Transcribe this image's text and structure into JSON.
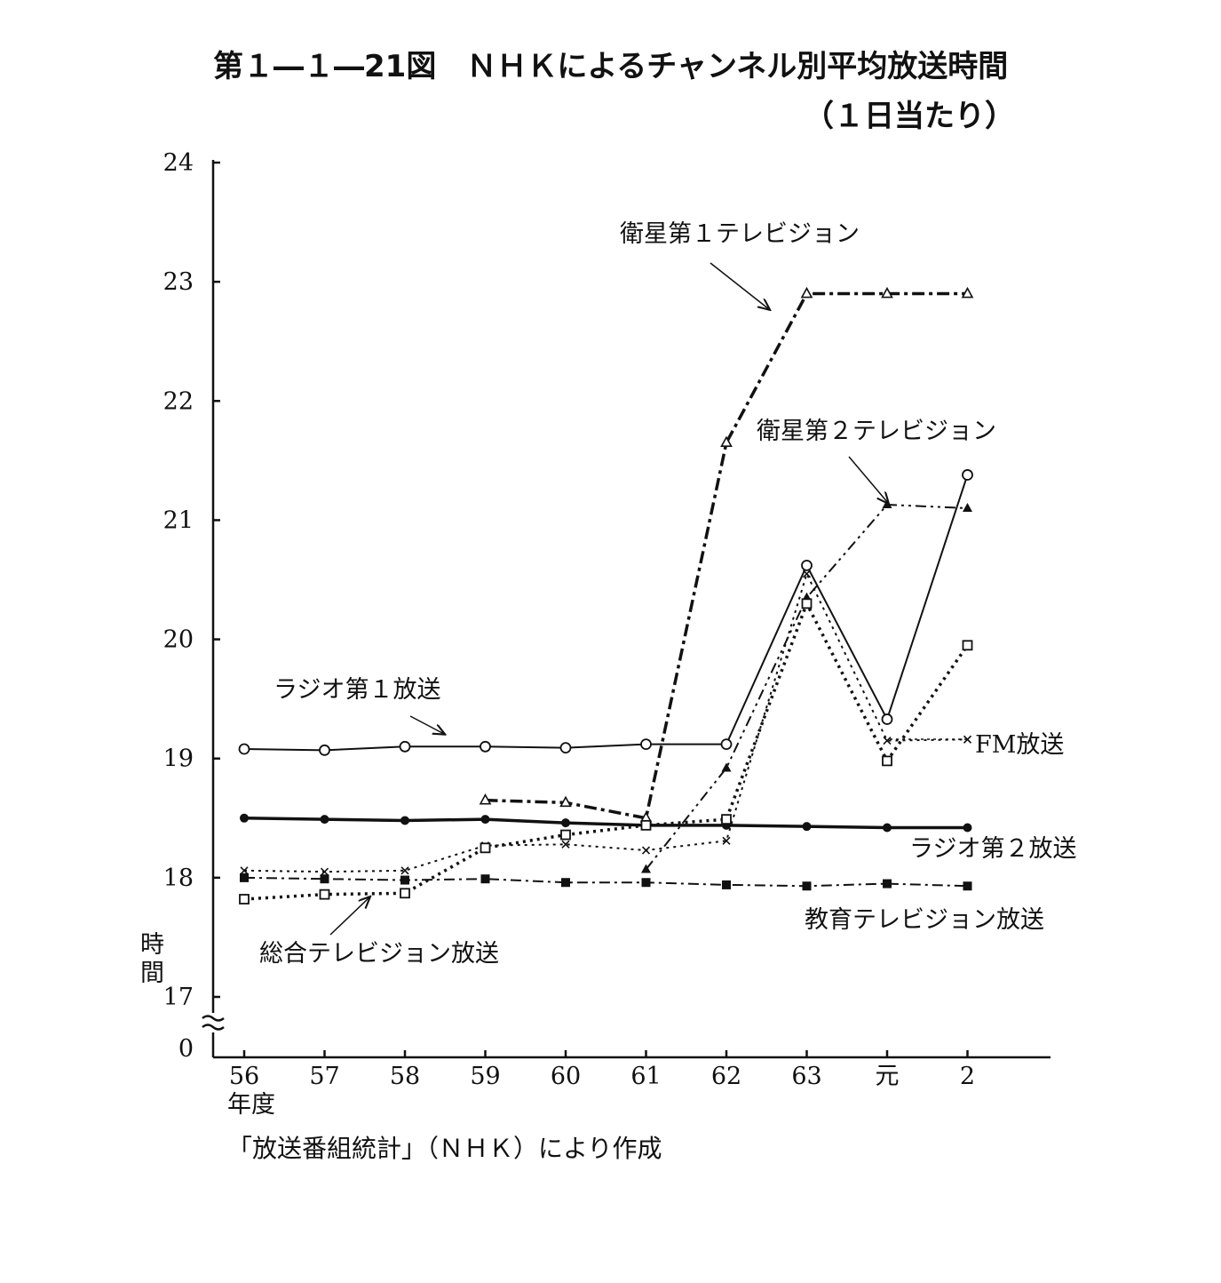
{
  "chart_data": {
    "type": "line",
    "title": "第１―１―21図　ＮＨＫによるチャンネル別平均放送時間",
    "subtitle": "（１日当たり）",
    "ylabel": "時間",
    "xlabel": "年度",
    "source": "「放送番組統計」（ＮＨＫ）により作成",
    "categories": [
      "56",
      "57",
      "58",
      "59",
      "60",
      "61",
      "62",
      "63",
      "元",
      "2"
    ],
    "y_ticks": [
      "0",
      "17",
      "18",
      "19",
      "20",
      "21",
      "22",
      "23",
      "24"
    ],
    "ylim": [
      17,
      24
    ],
    "axis_break": true,
    "grid": false,
    "series": [
      {
        "name": "衛星第１テレビジョン",
        "marker": "triangle-open",
        "dash": "dashdot-heavy",
        "values": [
          null,
          null,
          null,
          18.65,
          18.63,
          18.5,
          21.65,
          22.9,
          22.9,
          22.9
        ]
      },
      {
        "name": "衛星第２テレビジョン",
        "marker": "triangle-filled",
        "dash": "dashdotdot",
        "values": [
          null,
          null,
          null,
          null,
          null,
          18.07,
          18.92,
          20.35,
          21.13,
          21.1
        ]
      },
      {
        "name": "ラジオ第１放送",
        "marker": "circle-open",
        "dash": "solid",
        "values": [
          19.08,
          19.07,
          19.1,
          19.1,
          19.09,
          19.12,
          19.12,
          20.62,
          19.33,
          21.38
        ]
      },
      {
        "name": "FM放送",
        "marker": "x",
        "dash": "dotted",
        "values": [
          18.06,
          18.05,
          18.06,
          18.27,
          18.28,
          18.23,
          18.31,
          20.55,
          19.15,
          19.16
        ]
      },
      {
        "name": "ラジオ第２放送",
        "marker": "circle-filled",
        "dash": "solid-heavy",
        "values": [
          18.5,
          18.49,
          18.48,
          18.49,
          18.46,
          18.44,
          18.44,
          18.43,
          18.42,
          18.42
        ]
      },
      {
        "name": "教育テレビジョン放送",
        "marker": "square-filled",
        "dash": "dashdot",
        "values": [
          18.0,
          17.99,
          17.98,
          17.99,
          17.96,
          17.96,
          17.94,
          17.93,
          17.95,
          17.93
        ]
      },
      {
        "name": "総合テレビジョン放送",
        "marker": "square-open",
        "dash": "dotted-heavy",
        "values": [
          17.82,
          17.86,
          17.87,
          18.25,
          18.36,
          18.44,
          18.49,
          20.3,
          18.98,
          19.95
        ]
      }
    ]
  }
}
